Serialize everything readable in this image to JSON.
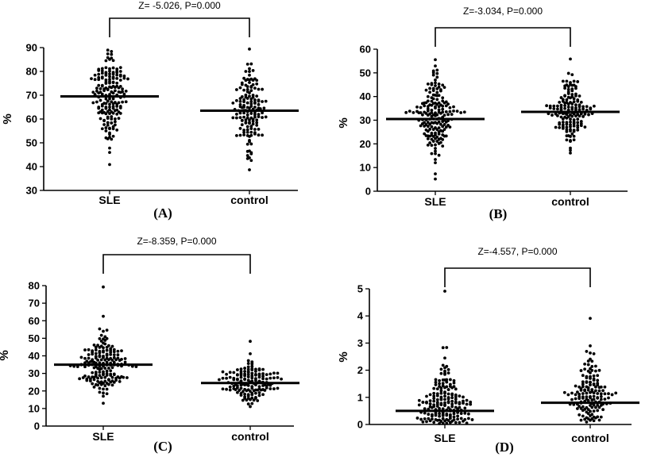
{
  "chart_data": [
    {
      "type": "scatter",
      "panel_label": "(A)",
      "ylabel": "%",
      "categories": [
        "SLE",
        "control"
      ],
      "ylim": [
        30,
        90
      ],
      "yticks": [
        30,
        40,
        50,
        60,
        70,
        80,
        90
      ],
      "annotation": "Z= -5.026, P=0.000",
      "medians": [
        69.5,
        63.5
      ],
      "series": [
        {
          "category": "SLE",
          "n": 180,
          "min": 41,
          "max": 89,
          "center": 69.5,
          "spread": 9.5
        },
        {
          "category": "control",
          "n": 150,
          "min": 38.5,
          "max": 89.5,
          "center": 63.5,
          "spread": 9
        }
      ]
    },
    {
      "type": "scatter",
      "panel_label": "(B)",
      "ylabel": "%",
      "categories": [
        "SLE",
        "control"
      ],
      "ylim": [
        0,
        60
      ],
      "yticks": [
        0,
        10,
        20,
        30,
        40,
        50,
        60
      ],
      "annotation": "Z=-3.034, P=0.000",
      "medians": [
        30.5,
        33.5
      ],
      "series": [
        {
          "category": "SLE",
          "n": 180,
          "min": 5,
          "max": 55.5,
          "center": 30.5,
          "spread": 8.5
        },
        {
          "category": "control",
          "n": 150,
          "min": 16,
          "max": 56,
          "center": 33.5,
          "spread": 6
        }
      ]
    },
    {
      "type": "scatter",
      "panel_label": "(C)",
      "ylabel": "%",
      "categories": [
        "SLE",
        "control"
      ],
      "ylim": [
        0,
        80
      ],
      "yticks": [
        0,
        10,
        20,
        30,
        40,
        50,
        60,
        70,
        80
      ],
      "annotation": "Z=-8.359, P=0.000",
      "medians": [
        35,
        24.5
      ],
      "series": [
        {
          "category": "SLE",
          "n": 180,
          "min": 13,
          "max": 79,
          "center": 35,
          "spread": 9
        },
        {
          "category": "control",
          "n": 150,
          "min": 11,
          "max": 48,
          "center": 24.5,
          "spread": 6
        }
      ]
    },
    {
      "type": "scatter",
      "panel_label": "(D)",
      "ylabel": "%",
      "categories": [
        "SLE",
        "control"
      ],
      "ylim": [
        0,
        5
      ],
      "yticks": [
        0,
        1,
        2,
        3,
        4,
        5
      ],
      "annotation": "Z=-4.557, P=0.000",
      "medians": [
        0.5,
        0.8
      ],
      "series": [
        {
          "category": "SLE",
          "n": 180,
          "min": 0.05,
          "max": 4.9,
          "center": 0.5,
          "spread": 0.8
        },
        {
          "category": "control",
          "n": 150,
          "min": 0.1,
          "max": 3.9,
          "center": 0.8,
          "spread": 0.75
        }
      ]
    }
  ]
}
